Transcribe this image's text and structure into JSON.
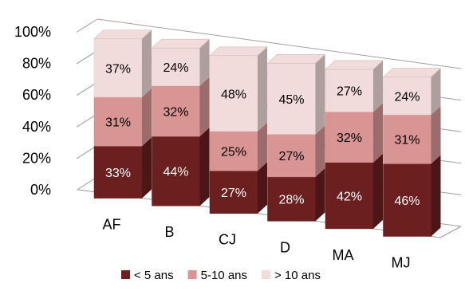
{
  "chart_data": {
    "type": "bar",
    "stacked": true,
    "three_d": true,
    "categories": [
      "AF",
      "B",
      "CJ",
      "D",
      "MA",
      "MJ"
    ],
    "series": [
      {
        "name": "< 5 ans",
        "values": [
          33,
          44,
          27,
          28,
          42,
          46
        ],
        "labels": [
          "33%",
          "44%",
          "27%",
          "28%",
          "42%",
          "46%"
        ],
        "color": "#6b1f1f",
        "label_color": "#ffffff"
      },
      {
        "name": "5-10 ans",
        "values": [
          31,
          32,
          25,
          27,
          32,
          31
        ],
        "labels": [
          "31%",
          "32%",
          "25%",
          "27%",
          "32%",
          "31%"
        ],
        "color": "#d99594",
        "label_color": "#000000"
      },
      {
        "name": "> 10 ans",
        "values": [
          37,
          24,
          48,
          45,
          27,
          24
        ],
        "labels": [
          "37%",
          "24%",
          "48%",
          "45%",
          "27%",
          "24%"
        ],
        "color": "#f2dcdb",
        "label_color": "#000000"
      }
    ],
    "yticks": [
      "0%",
      "20%",
      "40%",
      "60%",
      "80%",
      "100%"
    ],
    "ylim": [
      0,
      100
    ],
    "grid": true,
    "legend_position": "bottom",
    "title": "",
    "xlabel": "",
    "ylabel": ""
  }
}
